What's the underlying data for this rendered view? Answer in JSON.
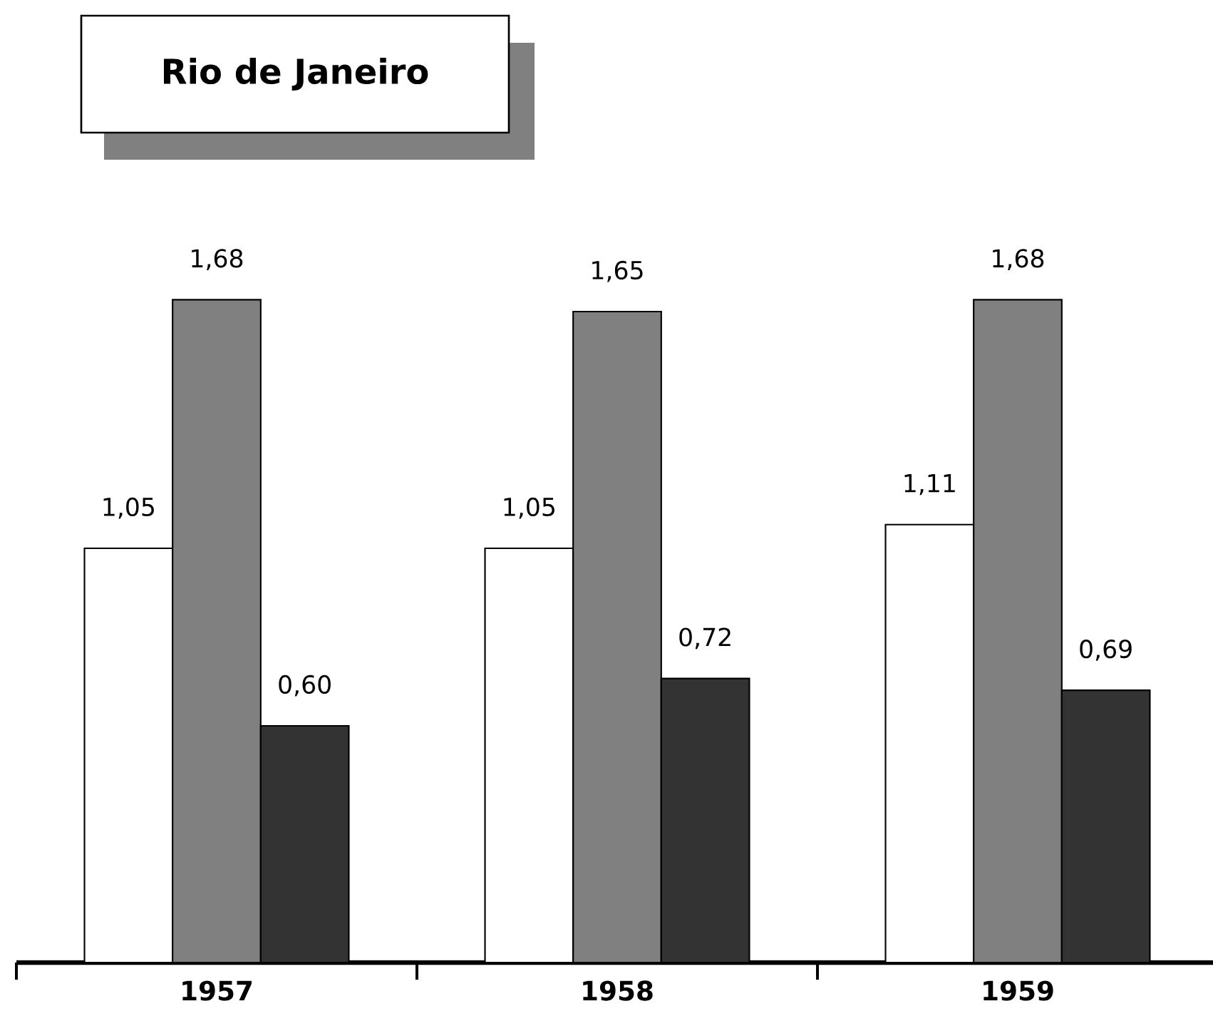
{
  "chart_data": {
    "type": "bar",
    "title": "Rio de Janeiro",
    "categories": [
      "1957",
      "1958",
      "1959"
    ],
    "series": [
      {
        "color": "#ffffff",
        "values": [
          1.05,
          1.05,
          1.11
        ],
        "value_labels": [
          "1,05",
          "1,05",
          "1,11"
        ]
      },
      {
        "color": "#808080",
        "values": [
          1.68,
          1.65,
          1.68
        ],
        "value_labels": [
          "1,68",
          "1,65",
          "1,68"
        ]
      },
      {
        "color": "#333333",
        "values": [
          0.6,
          0.72,
          0.69
        ],
        "value_labels": [
          "0,60",
          "0,72",
          "0,69"
        ]
      }
    ]
  }
}
